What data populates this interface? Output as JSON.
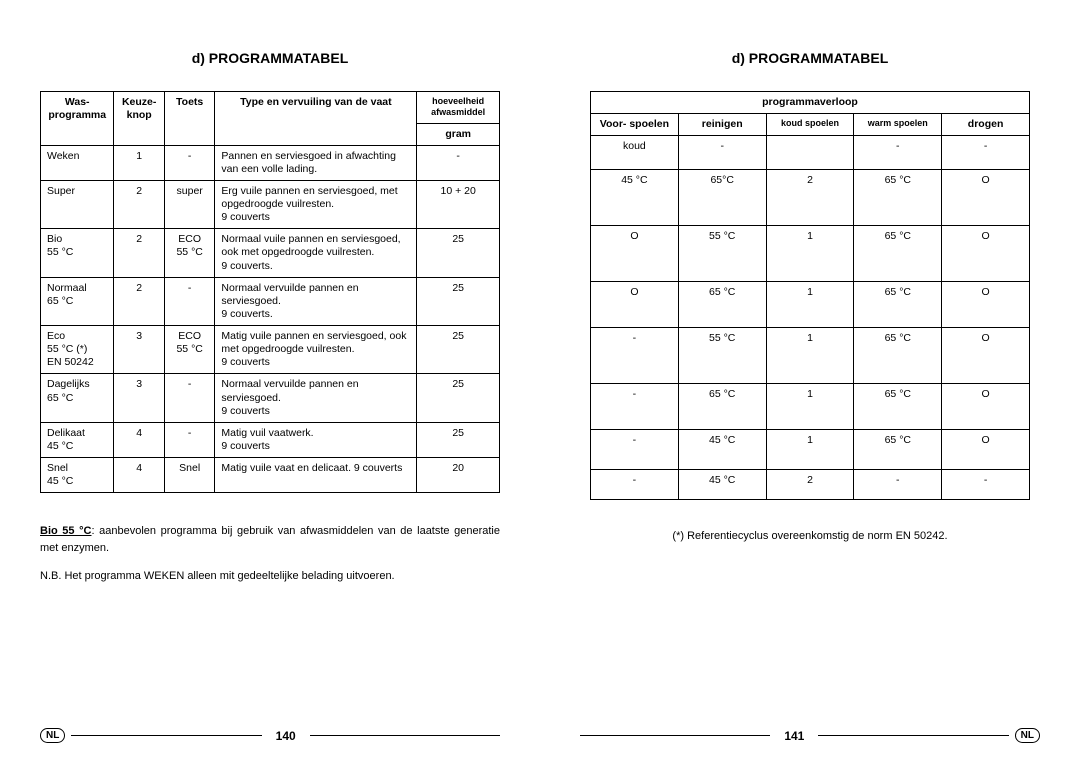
{
  "left": {
    "title": "d) PROGRAMMATABEL",
    "headers": {
      "c1": "Was-\nprogramma",
      "c2": "Keuze-\nknop",
      "c3": "Toets",
      "c4": "Type en vervuiling van\nde vaat",
      "c5": "hoeveelheid\nafwasmiddel",
      "unit": "gram"
    },
    "rows": [
      {
        "prog": "Weken",
        "knop": "1",
        "toets": "-",
        "type": "Pannen en serviesgoed in afwachting van een volle lading.",
        "gram": "-"
      },
      {
        "prog": "Super",
        "knop": "2",
        "toets": "super",
        "type": "Erg vuile pannen en serviesgoed, met opgedroogde vuilresten.\n9 couverts",
        "gram": "10 + 20"
      },
      {
        "prog": "Bio\n55 °C",
        "knop": "2",
        "toets": "ECO\n55 °C",
        "type": "Normaal vuile pannen en serviesgoed, ook met opgedroogde vuilresten.\n9 couverts.",
        "gram": "25"
      },
      {
        "prog": "Normaal\n65 °C",
        "knop": "2",
        "toets": "-",
        "type": "Normaal vervuilde pannen en serviesgoed.\n9 couverts.",
        "gram": "25"
      },
      {
        "prog": "Eco\n55 °C (*)\nEN 50242",
        "knop": "3",
        "toets": "ECO\n55 °C",
        "type": "Matig vuile pannen en serviesgoed, ook met opgedroogde vuilresten.\n9 couverts",
        "gram": "25"
      },
      {
        "prog": "Dagelijks\n65 °C",
        "knop": "3",
        "toets": "-",
        "type": "Normaal vervuilde pannen en serviesgoed.\n9 couverts",
        "gram": "25"
      },
      {
        "prog": "Delikaat\n45 °C",
        "knop": "4",
        "toets": "-",
        "type": "Matig vuil vaatwerk.\n9 couverts",
        "gram": "25"
      },
      {
        "prog": "Snel\n45 °C",
        "knop": "4",
        "toets": "Snel",
        "type": "Matig vuile vaat en delicaat. 9 couverts",
        "gram": "20"
      }
    ],
    "note1_bold": "Bio 55 °C",
    "note1_rest": ": aanbevolen programma bij gebruik van afwasmiddelen van de laatste generatie met enzymen.",
    "note2": "N.B. Het programma WEKEN alleen mit gedeeltelijke belading uitvoeren.",
    "nl": "NL",
    "pagenum": "140"
  },
  "right": {
    "title": "d) PROGRAMMATABEL",
    "header_top": "programmaverloop",
    "headers": {
      "c1": "Voor-\nspoelen",
      "c2": "reinigen",
      "c3": "koud\nspoelen",
      "c4": "warm\nspoelen",
      "c5": "drogen"
    },
    "rows": [
      {
        "a": "koud",
        "b": "-",
        "c": "",
        "d": "-",
        "e": "-"
      },
      {
        "a": "45 °C",
        "b": "65°C",
        "c": "2",
        "d": "65 °C",
        "e": "O"
      },
      {
        "a": "O",
        "b": "55 °C",
        "c": "1",
        "d": "65 °C",
        "e": "O"
      },
      {
        "a": "O",
        "b": "65 °C",
        "c": "1",
        "d": "65 °C",
        "e": "O"
      },
      {
        "a": "-",
        "b": "55 °C",
        "c": "1",
        "d": "65 °C",
        "e": "O"
      },
      {
        "a": "-",
        "b": "65 °C",
        "c": "1",
        "d": "65 °C",
        "e": "O"
      },
      {
        "a": "-",
        "b": "45 °C",
        "c": "1",
        "d": "65 °C",
        "e": "O"
      },
      {
        "a": "-",
        "b": "45 °C",
        "c": "2",
        "d": "-",
        "e": "-"
      }
    ],
    "note": "(*) Referentiecyclus overeenkomstig de norm EN 50242.",
    "nl": "NL",
    "pagenum": "141"
  },
  "colwidths_left": [
    "16%",
    "11%",
    "11%",
    "44%",
    "18%"
  ],
  "colwidths_right": [
    "20%",
    "20%",
    "20%",
    "20%",
    "20%"
  ],
  "row_heights_right": [
    "34px",
    "56px",
    "56px",
    "46px",
    "56px",
    "46px",
    "40px",
    "30px"
  ]
}
